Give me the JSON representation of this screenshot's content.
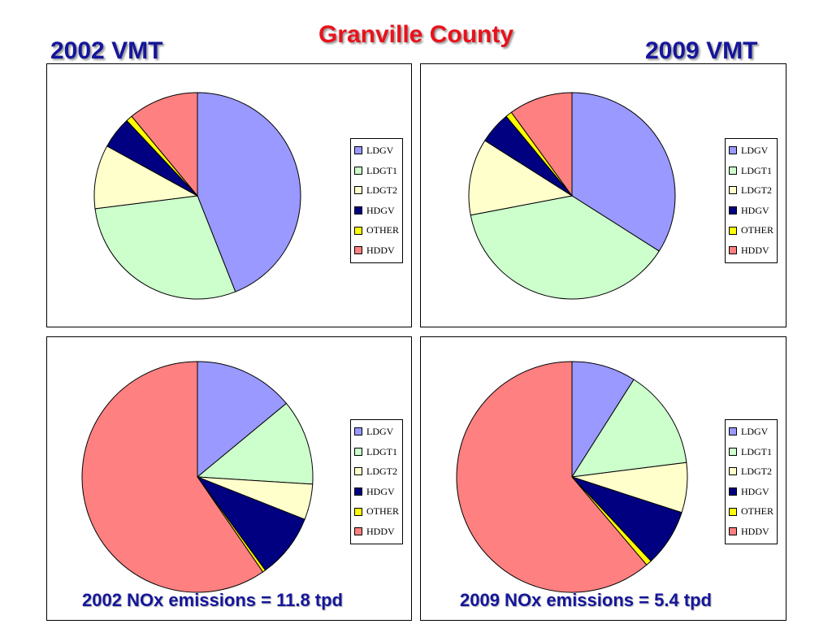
{
  "title": "Granville County",
  "labels": {
    "top_left": "2002 VMT",
    "top_right": "2009 VMT",
    "bottom_left": "2002 NOx emissions = 11.8 tpd",
    "bottom_right": "2009 NOx emissions = 5.4 tpd"
  },
  "colors": {
    "LDGV": "#9999ff",
    "LDGT1": "#ccffcc",
    "LDGT2": "#ffffcc",
    "HDGV": "#000080",
    "OTHER": "#ffff00",
    "HDDV": "#ff8080"
  },
  "chart_data": [
    {
      "type": "pie",
      "categories": [
        "LDGV",
        "LDGT1",
        "LDGT2",
        "HDGV",
        "OTHER",
        "HDDV"
      ],
      "values": [
        44,
        29,
        10,
        5,
        1,
        11
      ],
      "legend": "right"
    },
    {
      "type": "pie",
      "categories": [
        "LDGV",
        "LDGT1",
        "LDGT2",
        "HDGV",
        "OTHER",
        "HDDV"
      ],
      "values": [
        34,
        38,
        12,
        5,
        1,
        10
      ],
      "legend": "right"
    },
    {
      "type": "pie",
      "categories": [
        "LDGV",
        "LDGT1",
        "LDGT2",
        "HDGV",
        "OTHER",
        "HDDV"
      ],
      "values": [
        14,
        12,
        5,
        9,
        0.4,
        59.6
      ],
      "legend": "right"
    },
    {
      "type": "pie",
      "categories": [
        "LDGV",
        "LDGT1",
        "LDGT2",
        "HDGV",
        "OTHER",
        "HDDV"
      ],
      "values": [
        9,
        14,
        7,
        8,
        0.8,
        61.2
      ],
      "legend": "right"
    }
  ]
}
